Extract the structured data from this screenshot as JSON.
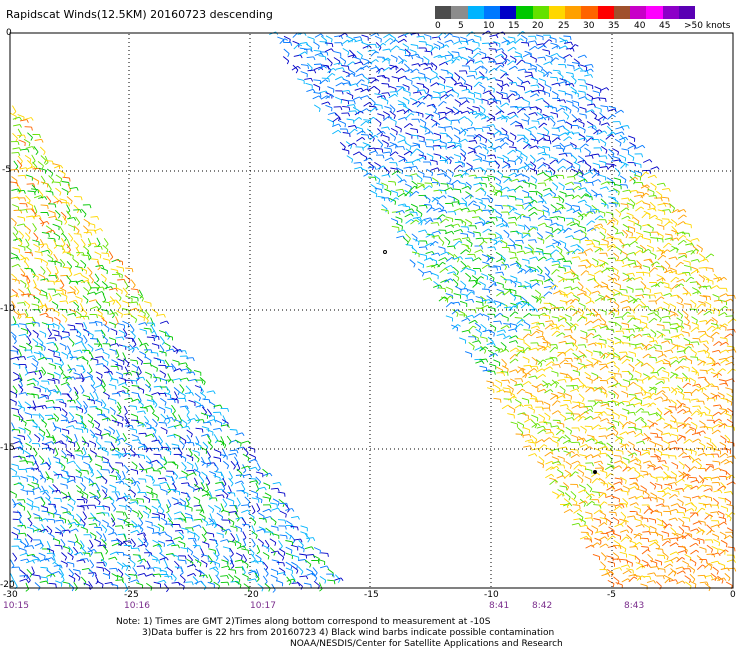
{
  "title": "Rapidscat Winds(12.5KM) 20160723 descending",
  "speed_scale": {
    "colors": [
      "#4d4d4d",
      "#8c8c8c",
      "#00b4ff",
      "#0078ff",
      "#0000c8",
      "#00c800",
      "#64e100",
      "#ffd700",
      "#ffa000",
      "#ff6400",
      "#ff0000",
      "#a0502d",
      "#c800c8",
      "#ff00ff",
      "#8c00c8",
      "#5a00b4"
    ],
    "labels": [
      "0",
      "5",
      "10",
      "15",
      "20",
      "25",
      "30",
      "35",
      "40",
      "45",
      ">50 knots"
    ]
  },
  "map": {
    "lat_labels": [
      "0",
      "-5",
      "-10",
      "-15",
      "-20"
    ],
    "lon_labels": [
      "-30",
      "-25",
      "-20",
      "-15",
      "-10",
      "-5",
      "0"
    ],
    "time_labels": [
      "10:15",
      "10:16",
      "10:17",
      "8:41",
      "8:42",
      "8:43"
    ]
  },
  "notes": [
    "Note: 1) Times are GMT 2)Times along bottom correspond to measurement at -10S",
    "3)Data buffer is 22 hrs from 20160723 4) Black wind barbs indicate possible contamination",
    "NOAA/NESDIS/Center for Satellite Applications and Research"
  ]
}
